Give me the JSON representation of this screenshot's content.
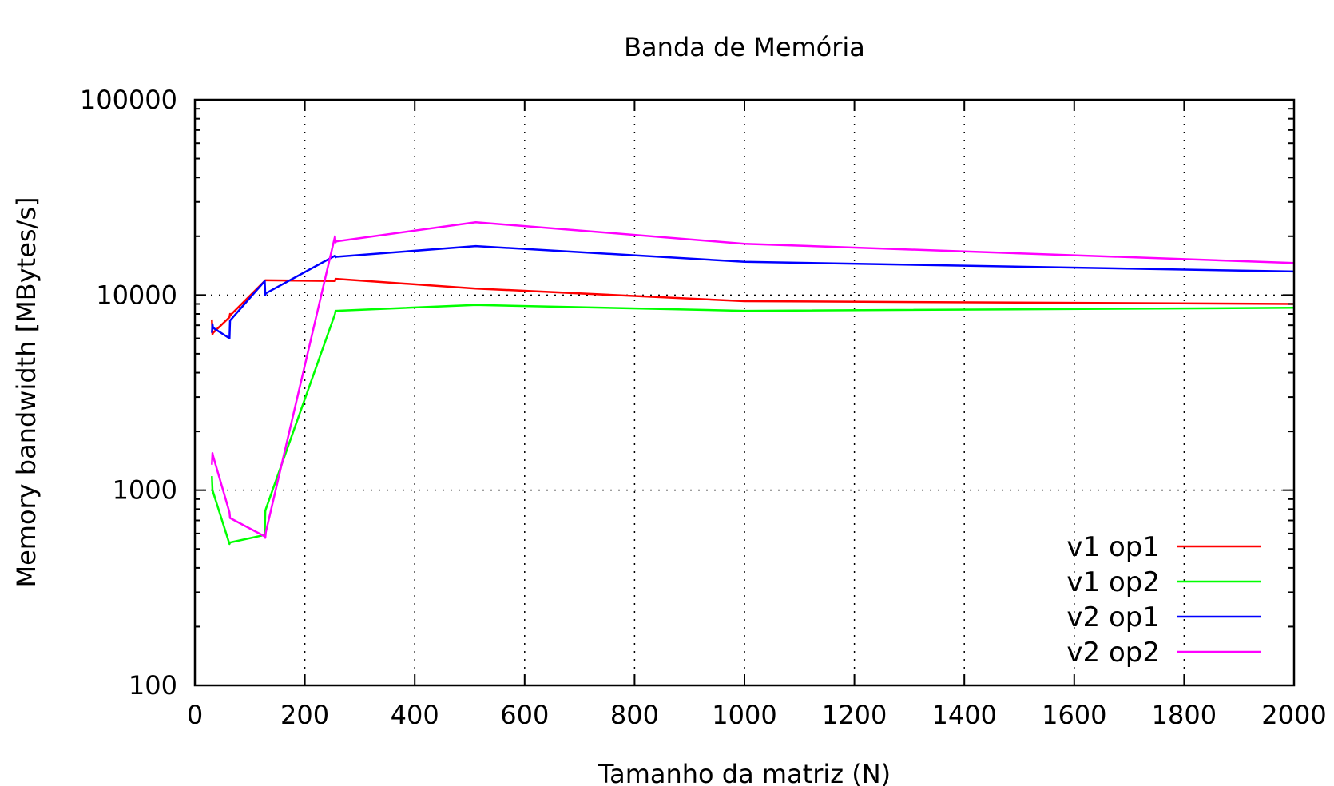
{
  "chart_data": {
    "type": "line",
    "title": "Banda de Memória",
    "xlabel": "Tamanho da matriz (N)",
    "ylabel": "Memory bandwidth [MBytes/s]",
    "xlim": [
      0,
      2000
    ],
    "ylim": [
      100,
      100000
    ],
    "yscale": "log",
    "xticks": [
      0,
      200,
      400,
      600,
      800,
      1000,
      1200,
      1400,
      1600,
      1800,
      2000
    ],
    "yticks": [
      100,
      1000,
      10000,
      100000
    ],
    "xtick_labels": [
      "0",
      "200",
      "400",
      "600",
      "800",
      "1000",
      "1200",
      "1400",
      "1600",
      "1800",
      "2000"
    ],
    "ytick_labels": [
      "100",
      "1000",
      "10000",
      "100000"
    ],
    "grid": true,
    "legend_position": "bottom-right",
    "series": [
      {
        "name": "v1 op1",
        "color": "#ff0000",
        "x": [
          31,
          32,
          33,
          63,
          64,
          65,
          127,
          128,
          129,
          255,
          256,
          257,
          511,
          1000,
          2000
        ],
        "y": [
          7500,
          6300,
          6400,
          7700,
          8000,
          7900,
          11800,
          11900,
          11900,
          11800,
          12100,
          12100,
          10800,
          9300,
          9000
        ]
      },
      {
        "name": "v1 op2",
        "color": "#00ff00",
        "x": [
          31,
          32,
          33,
          63,
          64,
          127,
          128,
          129,
          255,
          256,
          511,
          1000,
          2000
        ],
        "y": [
          1180,
          1000,
          980,
          530,
          540,
          590,
          780,
          800,
          8000,
          8300,
          8900,
          8300,
          8600
        ]
      },
      {
        "name": "v2 op1",
        "color": "#0000ff",
        "x": [
          31,
          32,
          33,
          63,
          64,
          127,
          128,
          129,
          255,
          256,
          257,
          511,
          1000,
          2000
        ],
        "y": [
          6400,
          7100,
          6800,
          6000,
          7400,
          11800,
          10000,
          10200,
          15900,
          15600,
          15700,
          17800,
          14800,
          13200
        ]
      },
      {
        "name": "v2 op2",
        "color": "#ff00ff",
        "x": [
          31,
          32,
          33,
          63,
          64,
          127,
          128,
          129,
          255,
          256,
          257,
          511,
          1000,
          2000
        ],
        "y": [
          1350,
          1550,
          1500,
          770,
          720,
          580,
          570,
          610,
          20000,
          18600,
          18800,
          23600,
          18300,
          14600
        ]
      }
    ]
  }
}
